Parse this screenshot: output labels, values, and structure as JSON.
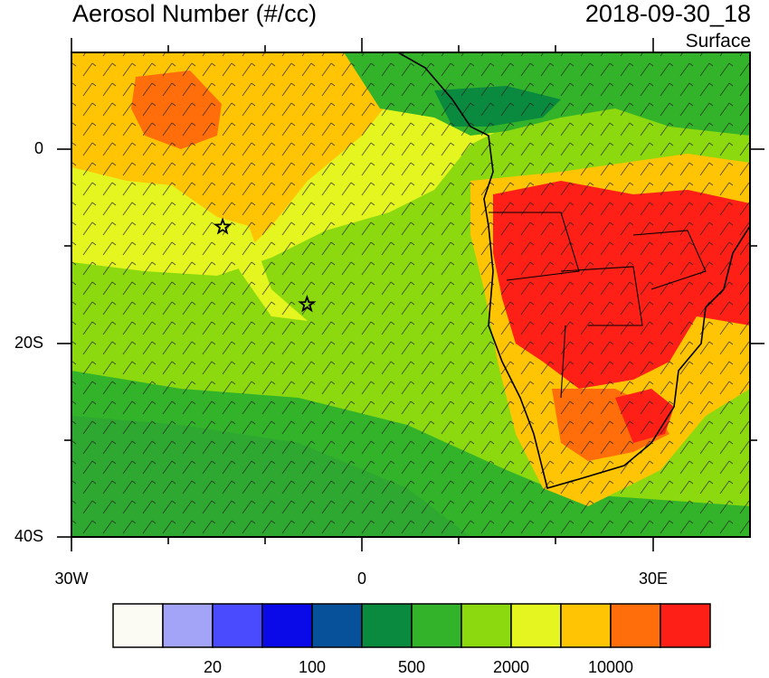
{
  "header": {
    "title": "Aerosol Number (#/cc)",
    "datetime": "2018-09-30_18",
    "level": "Surface"
  },
  "map": {
    "lon_range": [
      -30,
      40
    ],
    "lat_range": [
      -40,
      10
    ],
    "lon_labels": [
      "30W",
      "0",
      "30E"
    ],
    "lat_labels": [
      "0",
      "20S",
      "40S"
    ],
    "markers": [
      {
        "lon": -14.4,
        "lat": -8,
        "symbol": "star"
      },
      {
        "lon": -5.7,
        "lat": -16,
        "symbol": "star"
      }
    ]
  },
  "colorbar": {
    "colors": [
      "#fbfbf4",
      "#a3a3f7",
      "#4a4aff",
      "#0a0ae9",
      "#07509a",
      "#0a8a3e",
      "#33b32a",
      "#8bd90e",
      "#e4f51f",
      "#ffc403",
      "#ff6e0a",
      "#fe1f17"
    ],
    "labels": [
      "20",
      "100",
      "500",
      "2000",
      "10000"
    ],
    "label_after_box": [
      1,
      3,
      5,
      7,
      9
    ]
  }
}
